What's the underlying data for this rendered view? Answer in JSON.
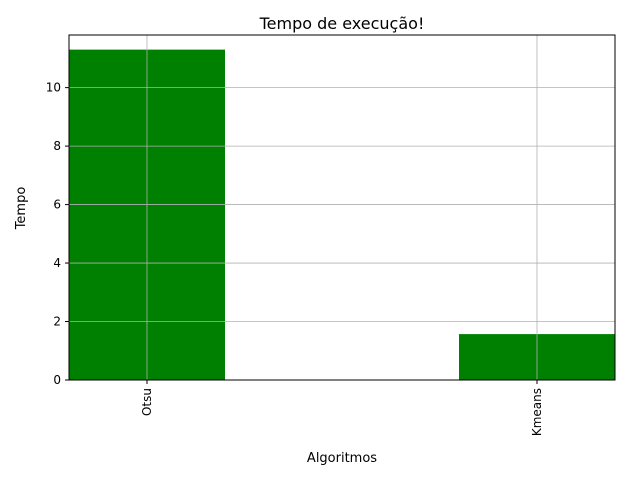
{
  "chart_data": {
    "type": "bar",
    "title": "Tempo de execução!",
    "xlabel": "Algoritmos",
    "ylabel": "Tempo",
    "categories": [
      "Otsu",
      "Kmeans"
    ],
    "values": [
      11.3,
      1.57
    ],
    "ylim": [
      0,
      11.8
    ],
    "yticks": [
      0,
      2,
      4,
      6,
      8,
      10
    ],
    "xlim": [
      -0.2,
      1.2
    ],
    "bar_width": 0.4,
    "bar_color": "#008000",
    "grid": true,
    "xtick_rotation": 90
  }
}
